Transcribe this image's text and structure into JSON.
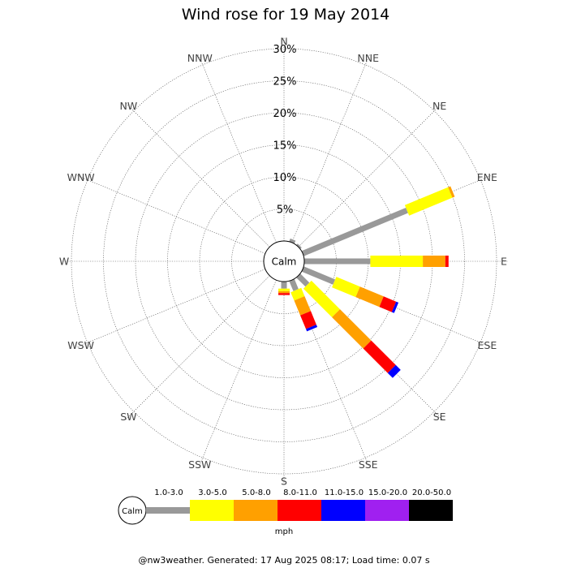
{
  "chart_data": {
    "type": "wind-rose",
    "title": "Wind rose for 19 May 2014",
    "directions": [
      "N",
      "NNE",
      "NE",
      "ENE",
      "E",
      "ESE",
      "SE",
      "SSE",
      "S",
      "SSW",
      "SW",
      "WSW",
      "W",
      "WNW",
      "NW",
      "NNW"
    ],
    "radial_ticks": [
      "5%",
      "10%",
      "15%",
      "20%",
      "25%",
      "30%"
    ],
    "radial_values": [
      5,
      10,
      15,
      20,
      25,
      30
    ],
    "radial_max": 30,
    "calm_label": "Calm",
    "speed_bins": [
      "1.0-3.0",
      "3.0-5.0",
      "5.0-8.0",
      "8.0-11.0",
      "11.0-15.0",
      "15.0-20.0",
      "20.0-50.0"
    ],
    "speed_colors": [
      "#999999",
      "#ffff00",
      "#ffa000",
      "#ff0000",
      "#0000ff",
      "#a020f0",
      "#000000"
    ],
    "unit": "mph",
    "series_by_direction": [
      {
        "direction": "NNE",
        "values": [
          0.5,
          0,
          0,
          0,
          0,
          0,
          0
        ]
      },
      {
        "direction": "NE",
        "values": [
          0.3,
          0,
          0,
          0,
          0,
          0,
          0
        ]
      },
      {
        "direction": "ENE",
        "values": [
          17.6,
          7.3,
          0.4,
          0,
          0,
          0,
          0
        ]
      },
      {
        "direction": "E",
        "values": [
          10.3,
          8.2,
          3.5,
          0.5,
          0,
          0,
          0
        ]
      },
      {
        "direction": "ESE",
        "values": [
          5.3,
          4.0,
          4.0,
          2.1,
          0.4,
          0,
          0
        ]
      },
      {
        "direction": "SE",
        "values": [
          2.0,
          6.3,
          6.9,
          5.4,
          1.1,
          0,
          0
        ]
      },
      {
        "direction": "SSE",
        "values": [
          1.7,
          1.4,
          2.5,
          2.3,
          0.4,
          0,
          0
        ]
      },
      {
        "direction": "S",
        "values": [
          1.1,
          0.4,
          0.3,
          0.3,
          0,
          0,
          0
        ]
      }
    ]
  },
  "legend": {
    "calm": "Calm",
    "bins": [
      "1.0-3.0",
      "3.0-5.0",
      "5.0-8.0",
      "8.0-11.0",
      "11.0-15.0",
      "15.0-20.0",
      "20.0-50.0"
    ],
    "unit": "mph"
  },
  "footer": "@nw3weather. Generated: 17 Aug 2025 08:17; Load time: 0.07 s"
}
